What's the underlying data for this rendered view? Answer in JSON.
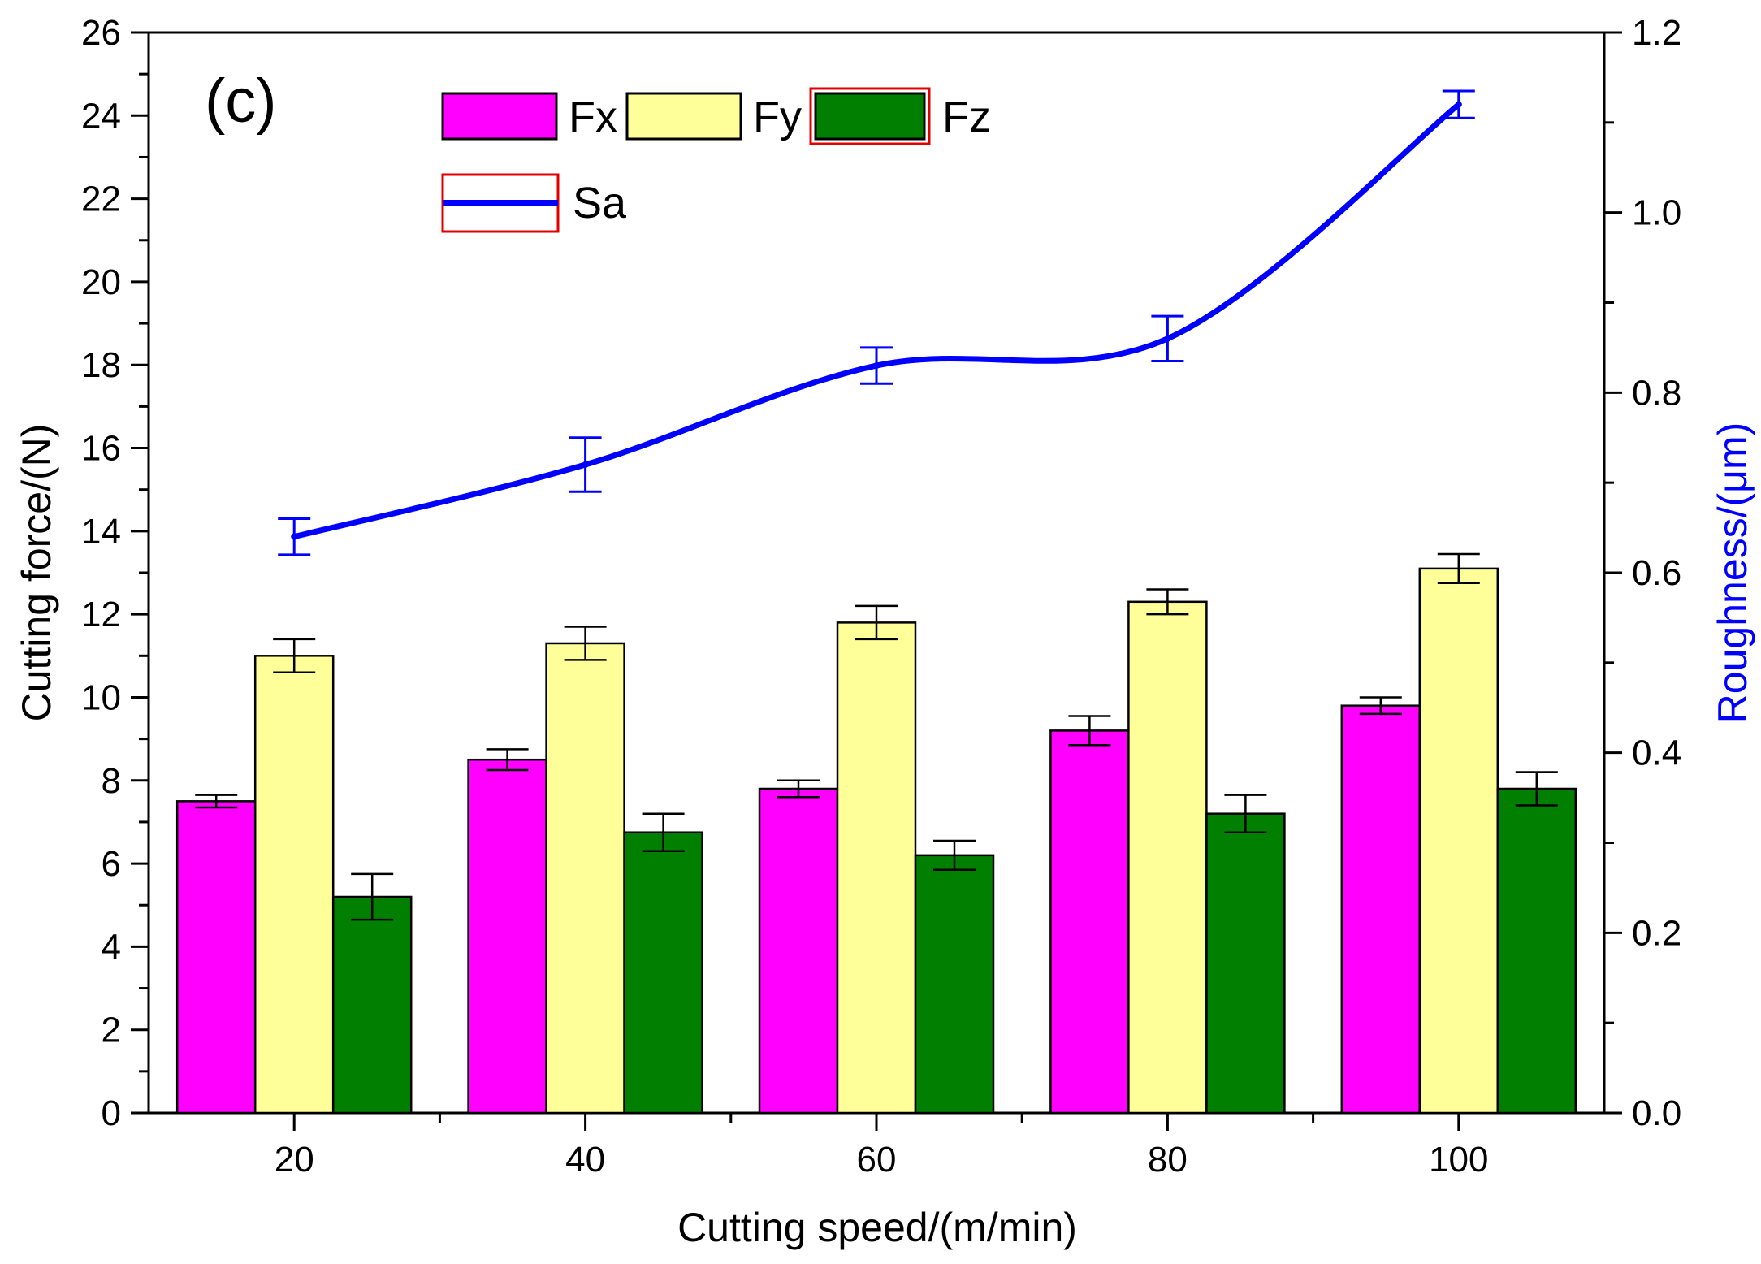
{
  "chart_data": {
    "type": "bar",
    "panel_label": "(c)",
    "xlabel": "Cutting speed/(m/min)",
    "ylabel": "Cutting force/(N)",
    "y2label": "Roughness/(μm)",
    "categories": [
      "20",
      "40",
      "60",
      "80",
      "100"
    ],
    "x": [
      20,
      40,
      60,
      80,
      100
    ],
    "xlim": [
      10,
      110
    ],
    "ylim": [
      0,
      26
    ],
    "y2lim": [
      0,
      1.2
    ],
    "yticks": [
      "0",
      "2",
      "4",
      "6",
      "8",
      "10",
      "12",
      "14",
      "16",
      "18",
      "20",
      "22",
      "24",
      "26"
    ],
    "y2ticks": [
      "0.0",
      "0.2",
      "0.4",
      "0.6",
      "0.8",
      "1.0",
      "1.2"
    ],
    "series": [
      {
        "name": "Fx",
        "color": "#ff00ff",
        "values": [
          7.5,
          8.5,
          7.8,
          9.2,
          9.8
        ],
        "errors": [
          0.15,
          0.25,
          0.2,
          0.35,
          0.2
        ]
      },
      {
        "name": "Fy",
        "color": "#ffff99",
        "values": [
          11.0,
          11.3,
          11.8,
          12.3,
          13.1
        ],
        "errors": [
          0.4,
          0.4,
          0.4,
          0.3,
          0.35
        ]
      },
      {
        "name": "Fz",
        "color": "#007f00",
        "values": [
          5.2,
          6.75,
          6.2,
          7.2,
          7.8
        ],
        "errors": [
          0.55,
          0.45,
          0.35,
          0.45,
          0.4
        ]
      }
    ],
    "line_series": {
      "name": "Sa",
      "color": "#0000ff",
      "axis": "right",
      "values": [
        0.64,
        0.72,
        0.83,
        0.86,
        1.12
      ],
      "errors": [
        0.02,
        0.03,
        0.02,
        0.025,
        0.015
      ]
    }
  }
}
